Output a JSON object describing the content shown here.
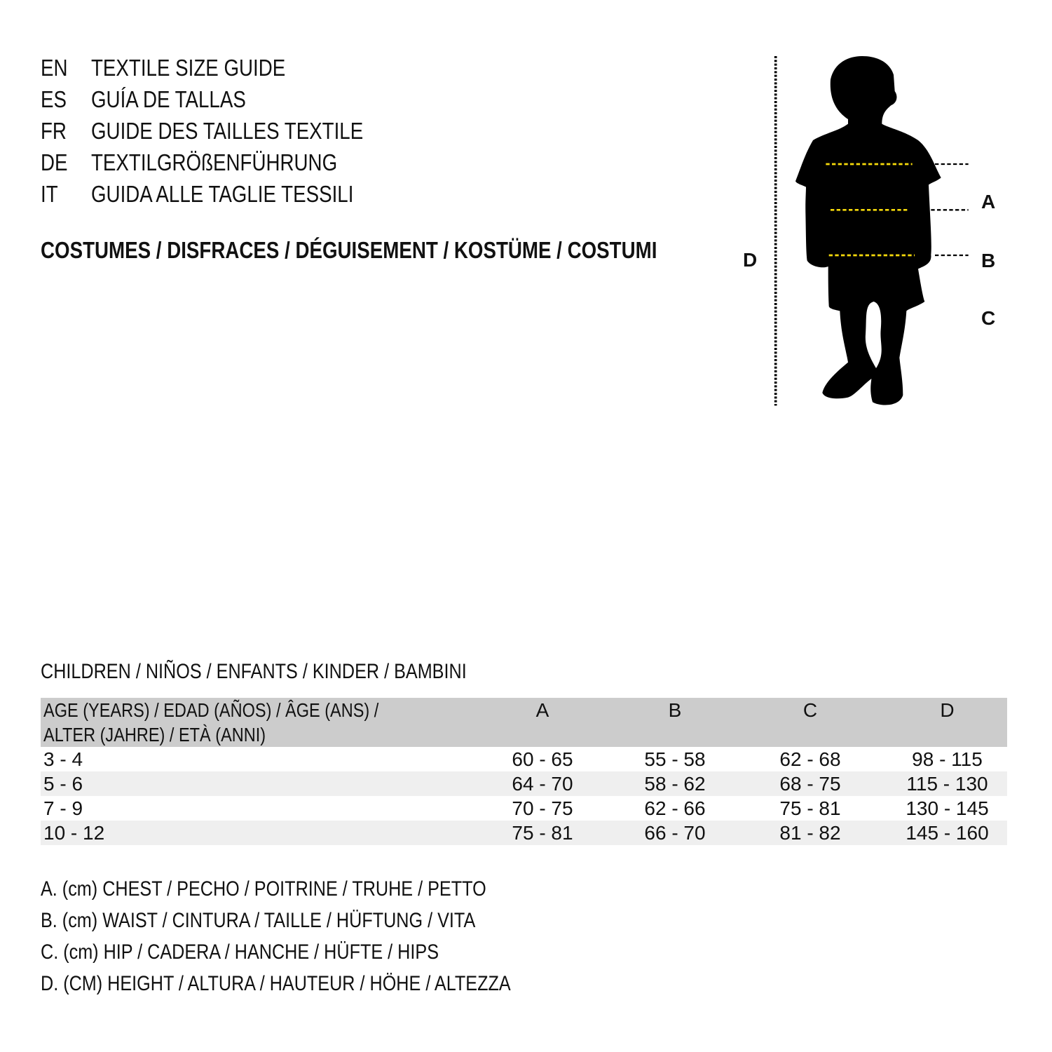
{
  "guides": [
    {
      "code": "EN",
      "text": "TEXTILE SIZE GUIDE"
    },
    {
      "code": "ES",
      "text": "GUÍA DE TALLAS"
    },
    {
      "code": "FR",
      "text": "GUIDE DES TAILLES TEXTILE"
    },
    {
      "code": "DE",
      "text": "TEXTILGRÖßENFÜHRUNG"
    },
    {
      "code": "IT",
      "text": "GUIDA ALLE TAGLIE TESSILI"
    }
  ],
  "category": "COSTUMES / DISFRACES / DÉGUISEMENT / KOSTÜME / COSTUMI",
  "figure": {
    "labels": {
      "a": "A",
      "b": "B",
      "c": "C",
      "d": "D"
    },
    "measure_line_color": "#f5d90a"
  },
  "section_title": "CHILDREN / NIÑOS / ENFANTS / KINDER / BAMBINI",
  "table": {
    "header_line1": "AGE (YEARS) / EDAD (AÑOS) / ÂGE (ANS) /",
    "header_line2": "ALTER (JAHRE) / ETÀ (ANNI)",
    "columns": [
      "A",
      "B",
      "C",
      "D"
    ],
    "rows": [
      [
        "3 - 4",
        "60 - 65",
        "55 - 58",
        "62 - 68",
        "98 - 115"
      ],
      [
        "5 - 6",
        "64 - 70",
        "58 - 62",
        "68 - 75",
        "115 - 130"
      ],
      [
        "7 - 9",
        "70 - 75",
        "62 - 66",
        "75 - 81",
        "130 - 145"
      ],
      [
        "10 - 12",
        "75 - 81",
        "66 - 70",
        "81 - 82",
        "145 - 160"
      ]
    ]
  },
  "legend": [
    "A. (cm) CHEST / PECHO / POITRINE / TRUHE / PETTO",
    "B. (cm) WAIST / CINTURA / TAILLE / HÜFTUNG / VITA",
    "C. (cm) HIP / CADERA / HANCHE / HÜFTE / HIPS",
    "D. (CM) HEIGHT / ALTURA / HAUTEUR / HÖHE / ALTEZZA"
  ]
}
